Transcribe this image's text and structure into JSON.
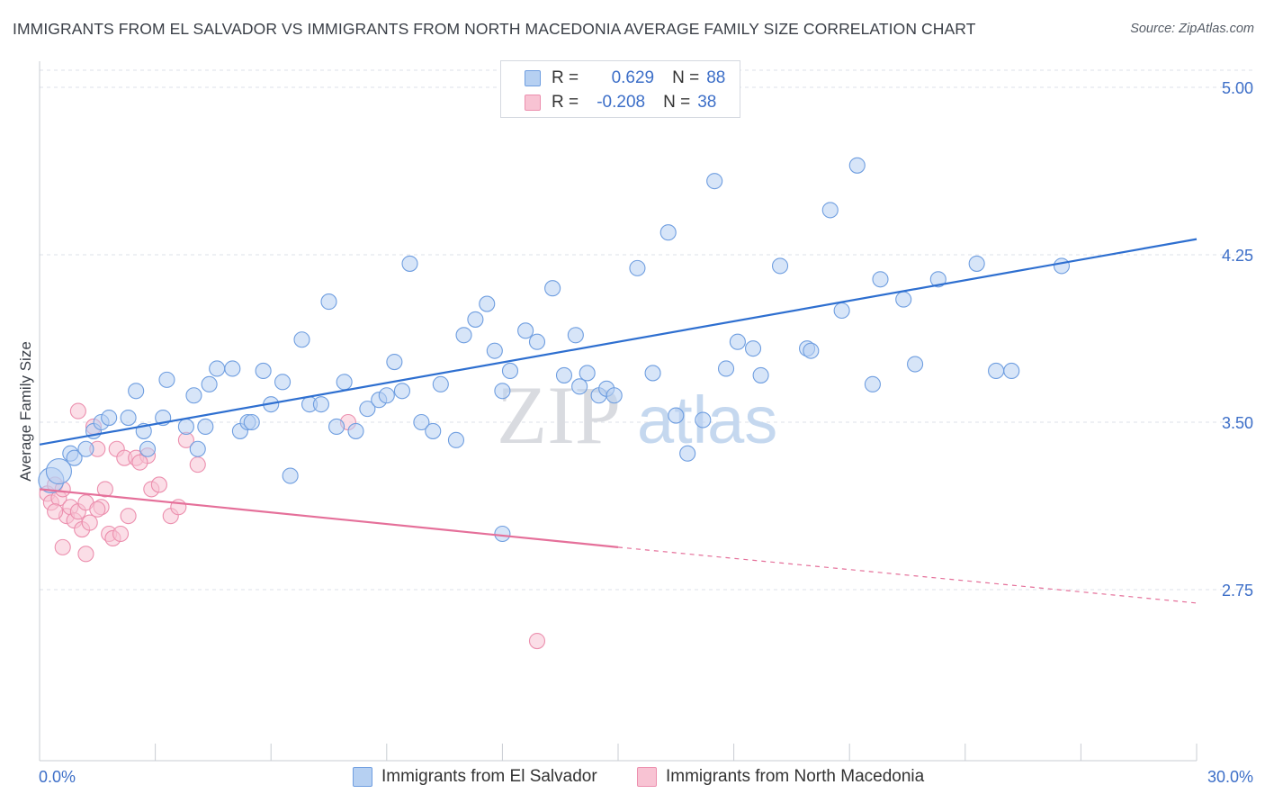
{
  "header": {
    "title": "IMMIGRANTS FROM EL SALVADOR VS IMMIGRANTS FROM NORTH MACEDONIA AVERAGE FAMILY SIZE CORRELATION CHART",
    "source": "Source: ZipAtlas.com"
  },
  "watermark": {
    "zip": "ZIP",
    "atlas": "atlas"
  },
  "legend": {
    "rows": [
      {
        "r_label": "R =",
        "r_value": "0.629",
        "n_label": "N =",
        "n_value": "88"
      },
      {
        "r_label": "R =",
        "r_value": "-0.208",
        "n_label": "N =",
        "n_value": "38"
      }
    ]
  },
  "colors": {
    "series1_fill": "#b6d0f2",
    "series1_stroke": "#6f9ee0",
    "series1_line": "#2e6fd0",
    "series2_fill": "#f8c3d3",
    "series2_stroke": "#ec8fae",
    "series2_line": "#e5709a",
    "tick_text": "#3d6fc8",
    "grid": "#dde1e8"
  },
  "chart_data": {
    "type": "scatter",
    "title": "IMMIGRANTS FROM EL SALVADOR VS IMMIGRANTS FROM NORTH MACEDONIA AVERAGE FAMILY SIZE CORRELATION CHART",
    "xlabel": "",
    "ylabel": "Average Family Size",
    "xlim": [
      0,
      30
    ],
    "ylim": [
      2.3,
      5.1
    ],
    "x_tick_labels": [
      "0.0%",
      "30.0%"
    ],
    "y_ticks": [
      2.75,
      3.5,
      4.25,
      5.0
    ],
    "y_tick_labels": [
      "2.75",
      "3.50",
      "4.25",
      "5.00"
    ],
    "grid": "horizontal dashed",
    "legend_position": "bottom",
    "series": [
      {
        "name": "Immigrants from El Salvador",
        "trendline": {
          "x": [
            0,
            30
          ],
          "y": [
            3.4,
            4.32
          ],
          "style": "solid"
        },
        "points": [
          [
            0.3,
            3.24
          ],
          [
            0.5,
            3.28
          ],
          [
            0.8,
            3.36
          ],
          [
            0.9,
            3.34
          ],
          [
            1.2,
            3.38
          ],
          [
            1.4,
            3.46
          ],
          [
            1.6,
            3.5
          ],
          [
            1.8,
            3.52
          ],
          [
            2.3,
            3.52
          ],
          [
            2.5,
            3.64
          ],
          [
            2.7,
            3.46
          ],
          [
            2.8,
            3.38
          ],
          [
            3.2,
            3.52
          ],
          [
            3.3,
            3.69
          ],
          [
            3.8,
            3.48
          ],
          [
            4.0,
            3.62
          ],
          [
            4.1,
            3.38
          ],
          [
            4.3,
            3.48
          ],
          [
            4.6,
            3.74
          ],
          [
            4.4,
            3.67
          ],
          [
            5.0,
            3.74
          ],
          [
            5.2,
            3.46
          ],
          [
            5.4,
            3.5
          ],
          [
            5.5,
            3.5
          ],
          [
            5.8,
            3.73
          ],
          [
            6.0,
            3.58
          ],
          [
            6.3,
            3.68
          ],
          [
            6.5,
            3.26
          ],
          [
            6.8,
            3.87
          ],
          [
            7.0,
            3.58
          ],
          [
            7.3,
            3.58
          ],
          [
            7.5,
            4.04
          ],
          [
            7.7,
            3.48
          ],
          [
            7.9,
            3.68
          ],
          [
            8.2,
            3.46
          ],
          [
            8.5,
            3.56
          ],
          [
            8.8,
            3.6
          ],
          [
            9.0,
            3.62
          ],
          [
            9.2,
            3.77
          ],
          [
            9.4,
            3.64
          ],
          [
            9.6,
            4.21
          ],
          [
            9.9,
            3.5
          ],
          [
            10.2,
            3.46
          ],
          [
            10.4,
            3.67
          ],
          [
            10.8,
            3.42
          ],
          [
            11.0,
            3.89
          ],
          [
            11.3,
            3.96
          ],
          [
            11.6,
            4.03
          ],
          [
            11.8,
            3.82
          ],
          [
            12.0,
            3.64
          ],
          [
            12.2,
            3.73
          ],
          [
            12.6,
            3.91
          ],
          [
            12.9,
            3.86
          ],
          [
            13.3,
            4.1
          ],
          [
            13.6,
            3.71
          ],
          [
            13.9,
            3.89
          ],
          [
            14.0,
            3.66
          ],
          [
            14.2,
            3.72
          ],
          [
            14.5,
            3.62
          ],
          [
            14.7,
            3.65
          ],
          [
            14.9,
            3.62
          ],
          [
            15.5,
            4.19
          ],
          [
            15.9,
            3.72
          ],
          [
            16.3,
            4.35
          ],
          [
            16.5,
            3.53
          ],
          [
            16.8,
            3.36
          ],
          [
            17.2,
            3.51
          ],
          [
            17.5,
            4.58
          ],
          [
            17.8,
            3.74
          ],
          [
            18.1,
            3.86
          ],
          [
            18.5,
            3.83
          ],
          [
            18.7,
            3.71
          ],
          [
            19.2,
            4.2
          ],
          [
            19.9,
            3.83
          ],
          [
            20.5,
            4.45
          ],
          [
            20.8,
            4.0
          ],
          [
            21.2,
            4.65
          ],
          [
            21.6,
            3.67
          ],
          [
            21.8,
            4.14
          ],
          [
            22.4,
            4.05
          ],
          [
            22.7,
            3.76
          ],
          [
            23.3,
            4.14
          ],
          [
            24.3,
            4.21
          ],
          [
            24.8,
            3.73
          ],
          [
            25.2,
            3.73
          ],
          [
            26.5,
            4.2
          ],
          [
            12.0,
            3.0
          ],
          [
            20.0,
            3.82
          ]
        ]
      },
      {
        "name": "Immigrants from North Macedonia",
        "trendline": {
          "x": [
            0,
            15
          ],
          "y": [
            3.2,
            2.94
          ],
          "x_dashed_end": 30,
          "y_dashed_end": 2.69,
          "style": "solid then dashed"
        },
        "points": [
          [
            0.2,
            3.18
          ],
          [
            0.3,
            3.14
          ],
          [
            0.4,
            3.22
          ],
          [
            0.5,
            3.16
          ],
          [
            0.6,
            3.2
          ],
          [
            0.7,
            3.08
          ],
          [
            0.8,
            3.12
          ],
          [
            0.9,
            3.06
          ],
          [
            1.0,
            3.1
          ],
          [
            1.1,
            3.02
          ],
          [
            1.2,
            3.14
          ],
          [
            1.3,
            3.05
          ],
          [
            1.4,
            3.48
          ],
          [
            1.5,
            3.38
          ],
          [
            1.6,
            3.12
          ],
          [
            1.7,
            3.2
          ],
          [
            1.8,
            3.0
          ],
          [
            1.9,
            2.98
          ],
          [
            2.0,
            3.38
          ],
          [
            2.1,
            3.0
          ],
          [
            2.2,
            3.34
          ],
          [
            2.3,
            3.08
          ],
          [
            2.5,
            3.34
          ],
          [
            2.9,
            3.2
          ],
          [
            3.1,
            3.22
          ],
          [
            3.4,
            3.08
          ],
          [
            3.6,
            3.12
          ],
          [
            3.8,
            3.42
          ],
          [
            4.1,
            3.31
          ],
          [
            1.0,
            3.55
          ],
          [
            0.6,
            2.94
          ],
          [
            1.2,
            2.91
          ],
          [
            2.8,
            3.35
          ],
          [
            8.0,
            3.5
          ],
          [
            12.9,
            2.52
          ],
          [
            0.4,
            3.1
          ],
          [
            2.6,
            3.32
          ],
          [
            1.5,
            3.11
          ]
        ]
      }
    ]
  },
  "bottom_legend": [
    {
      "label": "Immigrants from El Salvador"
    },
    {
      "label": "Immigrants from North Macedonia"
    }
  ]
}
